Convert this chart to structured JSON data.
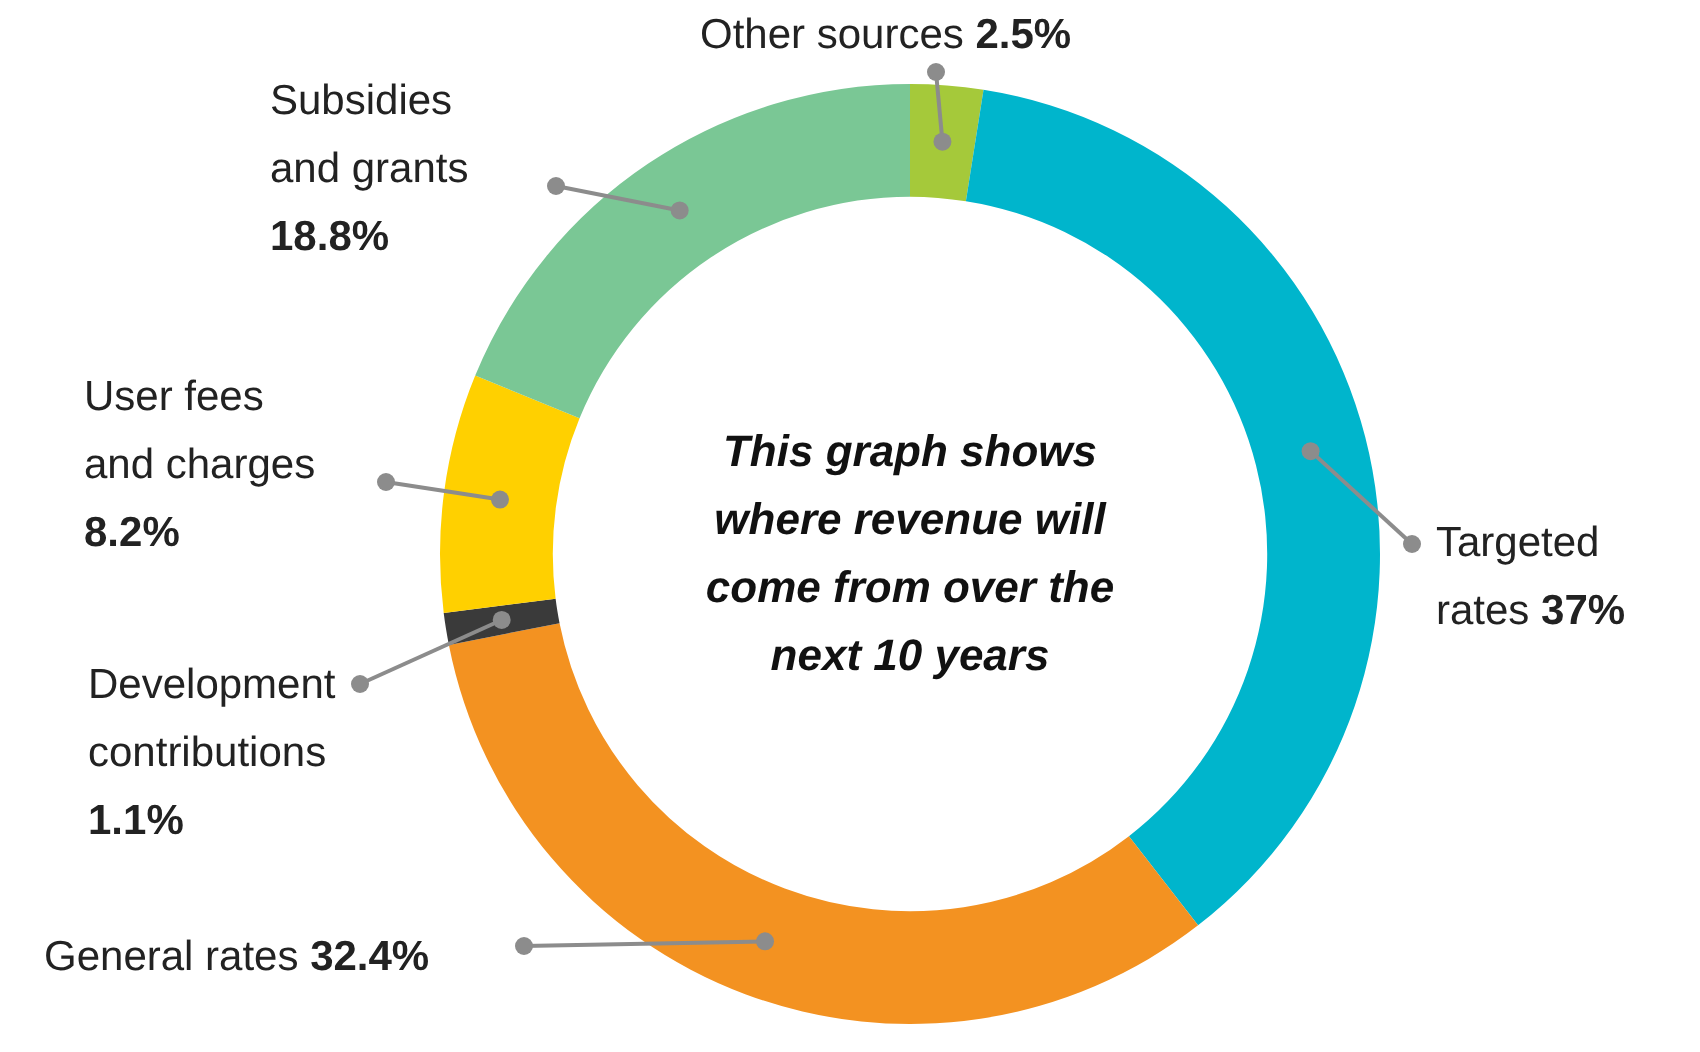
{
  "chart_data": {
    "type": "donut",
    "categories": [
      "Other sources",
      "Targeted rates",
      "General rates",
      "Development contributions",
      "User fees and charges",
      "Subsidies and grants"
    ],
    "values": [
      2.5,
      37,
      32.4,
      1.1,
      8.2,
      18.8
    ],
    "colors": [
      "#a5c93a",
      "#00b5cc",
      "#f39221",
      "#3a3a3a",
      "#ffd000",
      "#7ac795"
    ],
    "value_labels": [
      "2.5%",
      "37%",
      "32.4%",
      "1.1%",
      "8.2%",
      "18.8%"
    ],
    "legend": false,
    "annotations": [
      "This graph shows where revenue will come from over the next 10 years"
    ]
  }
}
